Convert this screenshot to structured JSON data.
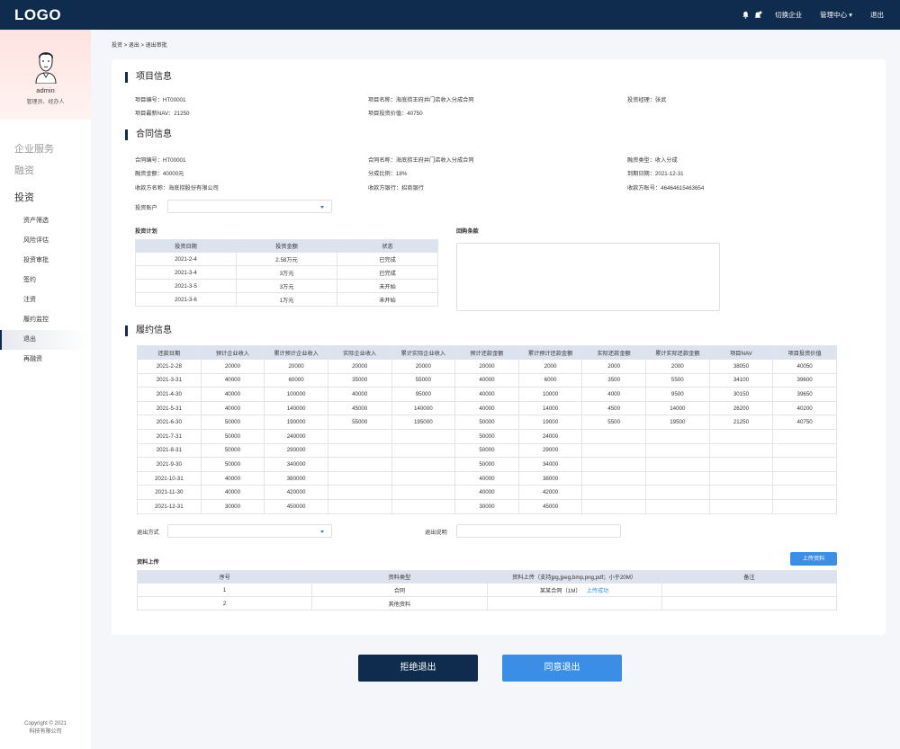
{
  "header": {
    "logo": "LOGO",
    "switch_company": "切换企业",
    "manage_center": "管理中心",
    "logout": "退出"
  },
  "sidebar": {
    "username": "admin",
    "role": "管理员、经办人",
    "groups": [
      "企业服务",
      "融资",
      "投资"
    ],
    "items": [
      "资产筛选",
      "风险评估",
      "投资审批",
      "签约",
      "注资",
      "履约监控",
      "退出",
      "再融资"
    ],
    "active_index": 6,
    "copyright_line1": "Copyright © 2021",
    "copyright_line2": "科技有限公司"
  },
  "breadcrumb": "投资 > 退出 > 退出审批",
  "project": {
    "title": "项目信息",
    "code": "项目编号：HT00001",
    "name": "项目名称：海底捞王府井门店收入分成合同",
    "manager": "投资经理：张武",
    "nav": "项目最新NAV：21250",
    "value": "项目投资价值：40750"
  },
  "contract": {
    "title": "合同信息",
    "code": "合同编号：HT00001",
    "name": "合同名称：海底捞王府井门店收入分成合同",
    "type": "融资类型：收入分成",
    "amount": "融资金额：40000元",
    "ratio": "分成比例：18%",
    "due": "到期日期：2021-12-31",
    "payee": "收款方名称：海底捞股份有限公司",
    "bank": "收款方银行：招商银行",
    "account": "收款方账号：46464615463654",
    "invest_account_label": "投资账户"
  },
  "plan": {
    "title": "投资计划",
    "headers": [
      "投资日期",
      "投资金额",
      "状态"
    ],
    "rows": [
      [
        "2021-2-4",
        "2.58万元",
        "已完成"
      ],
      [
        "2021-3-4",
        "3万元",
        "已完成"
      ],
      [
        "2021-3-5",
        "3万元",
        "未开始"
      ],
      [
        "2021-3-6",
        "1万元",
        "未开始"
      ]
    ]
  },
  "buyback": {
    "title": "回购条款"
  },
  "performance": {
    "title": "履约信息",
    "headers": [
      "还款日期",
      "预计企业收入",
      "累计预计企业收入",
      "实际企业收入",
      "累计实际企业收入",
      "预计还款金额",
      "累计预计还款金额",
      "实际还款金额",
      "累计实际还款金额",
      "项目NAV",
      "项目投资价值"
    ],
    "rows": [
      [
        "2021-2-28",
        "20000",
        "20000",
        "20000",
        "20000",
        "20000",
        "2000",
        "2000",
        "2000",
        "38050",
        "40050"
      ],
      [
        "2021-3-31",
        "40000",
        "60000",
        "35000",
        "55000",
        "40000",
        "6000",
        "3500",
        "5500",
        "34100",
        "39600"
      ],
      [
        "2021-4-30",
        "40000",
        "100000",
        "40000",
        "95000",
        "40000",
        "10000",
        "4000",
        "9500",
        "30150",
        "39650"
      ],
      [
        "2021-5-31",
        "40000",
        "140000",
        "45000",
        "140000",
        "40000",
        "14000",
        "4500",
        "14000",
        "26200",
        "40200"
      ],
      [
        "2021-6-30",
        "50000",
        "190000",
        "55000",
        "195000",
        "50000",
        "19000",
        "5500",
        "19500",
        "21250",
        "40750"
      ],
      [
        "2021-7-31",
        "50000",
        "240000",
        "",
        "",
        "50000",
        "24000",
        "",
        "",
        "",
        ""
      ],
      [
        "2021-8-31",
        "50000",
        "290000",
        "",
        "",
        "50000",
        "29000",
        "",
        "",
        "",
        ""
      ],
      [
        "2021-9-30",
        "50000",
        "340000",
        "",
        "",
        "50000",
        "34000",
        "",
        "",
        "",
        ""
      ],
      [
        "2021-10-31",
        "40000",
        "380000",
        "",
        "",
        "40000",
        "38000",
        "",
        "",
        "",
        ""
      ],
      [
        "2021-11-30",
        "40000",
        "420000",
        "",
        "",
        "40000",
        "42000",
        "",
        "",
        "",
        ""
      ],
      [
        "2021-12-31",
        "30000",
        "450000",
        "",
        "",
        "30000",
        "45000",
        "",
        "",
        "",
        ""
      ]
    ]
  },
  "exit": {
    "method_label": "退出方式",
    "desc_label": "退出说明"
  },
  "upload": {
    "title": "资料上传",
    "button": "上传资料",
    "headers": [
      "序号",
      "资料类型",
      "资料上传（支持jpg,jpeg,bmp,png,pdf；小于20M）",
      "备注"
    ],
    "rows": [
      {
        "no": "1",
        "type": "合同",
        "file": "某某合同（1M）",
        "status": "上传成功",
        "note": ""
      },
      {
        "no": "2",
        "type": "其他资料",
        "file": "",
        "status": "",
        "note": ""
      }
    ]
  },
  "actions": {
    "reject": "拒绝退出",
    "agree": "同意退出"
  }
}
